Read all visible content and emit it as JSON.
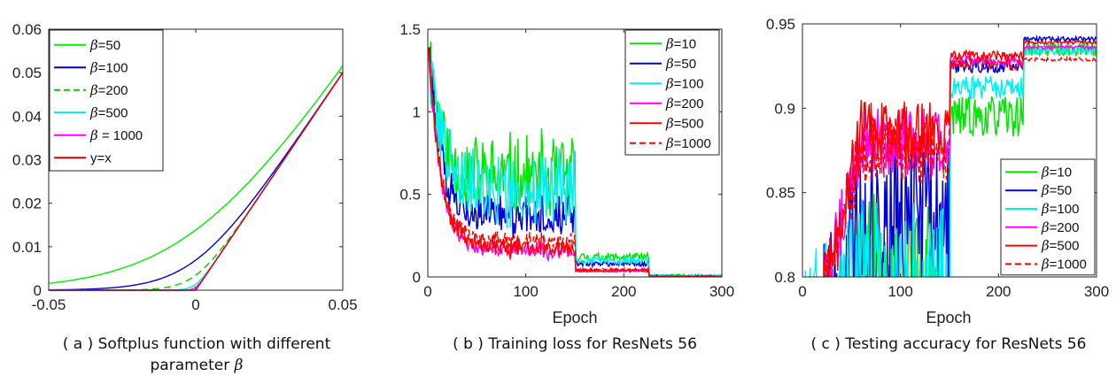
{
  "chart_data": [
    {
      "type": "line",
      "caption_line1": "( a ) Softplus function with different",
      "caption_line2": "parameter",
      "caption_symbol": "β",
      "xlim": [
        -0.05,
        0.05
      ],
      "ylim": [
        0,
        0.06
      ],
      "xticks": [
        "-0.05",
        "0",
        "0.05"
      ],
      "yticks": [
        "0",
        "0.01",
        "0.02",
        "0.03",
        "0.04",
        "0.05",
        "0.06"
      ],
      "legend_position": "top-left",
      "series": [
        {
          "label": "=50",
          "beta": 50,
          "color": "#00ee00",
          "dash": false
        },
        {
          "label": "=100",
          "beta": 100,
          "color": "#0000cc",
          "dash": false
        },
        {
          "label": "=200",
          "beta": 200,
          "color": "#00cc00",
          "dash": true
        },
        {
          "label": "=500",
          "beta": 500,
          "color": "#00e5e5",
          "dash": false
        },
        {
          "label": " = 1000",
          "beta": 1000,
          "color": "#ff00ff",
          "dash": false
        },
        {
          "label": "y=x",
          "beta": null,
          "color": "#dd0000",
          "dash": false
        }
      ]
    },
    {
      "type": "line",
      "caption": "( b ) Training loss for ResNets 56",
      "xlabel": "Epoch",
      "xlim": [
        0,
        300
      ],
      "ylim": [
        0,
        1.5
      ],
      "xticks": [
        "0",
        "100",
        "200",
        "300"
      ],
      "yticks": [
        "0",
        "0.5",
        "1",
        "1.5"
      ],
      "legend_position": "top-right",
      "series": [
        {
          "label": "=10",
          "color": "#00e600",
          "dash": false,
          "stage_means": [
            0.6,
            0.12,
            0.008
          ],
          "noise": [
            0.26,
            0.025
          ]
        },
        {
          "label": "=50",
          "color": "#0000dd",
          "dash": false,
          "stage_means": [
            0.37,
            0.08,
            0.006
          ],
          "noise": [
            0.12,
            0.015
          ]
        },
        {
          "label": "=100",
          "color": "#00f0f0",
          "dash": false,
          "stage_means": [
            0.55,
            0.1,
            0.007
          ],
          "noise": [
            0.22,
            0.02
          ]
        },
        {
          "label": "=200",
          "color": "#ff00ff",
          "dash": false,
          "stage_means": [
            0.16,
            0.035,
            0.003
          ],
          "noise": [
            0.05,
            0.006
          ]
        },
        {
          "label": "=500",
          "color": "#ff0000",
          "dash": false,
          "stage_means": [
            0.18,
            0.04,
            0.003
          ],
          "noise": [
            0.06,
            0.007
          ]
        },
        {
          "label": "=1000",
          "color": "#ff0000",
          "dash": true,
          "stage_means": [
            0.21,
            0.045,
            0.004
          ],
          "noise": [
            0.06,
            0.008
          ]
        }
      ]
    },
    {
      "type": "line",
      "caption_prefix": "( c ) Testing accuracy for",
      "caption_suffix": "ResNets 56",
      "xlabel": "Epoch",
      "xlim": [
        0,
        300
      ],
      "ylim": [
        0.8,
        0.95
      ],
      "xticks": [
        "0",
        "100",
        "200",
        "300"
      ],
      "yticks": [
        "0.8",
        "0.85",
        "0.9",
        "0.95"
      ],
      "legend_position": "bottom-right",
      "series": [
        {
          "label": "=10",
          "color": "#00e600",
          "dash": false,
          "stage_means": [
            0.79,
            0.895,
            0.935
          ],
          "noise": [
            0.06,
            0.012
          ]
        },
        {
          "label": "=50",
          "color": "#0000dd",
          "dash": false,
          "stage_means": [
            0.83,
            0.925,
            0.941
          ],
          "noise": [
            0.05,
            0.004
          ]
        },
        {
          "label": "=100",
          "color": "#00f0f0",
          "dash": false,
          "stage_means": [
            0.78,
            0.912,
            0.934
          ],
          "noise": [
            0.07,
            0.007
          ]
        },
        {
          "label": "=200",
          "color": "#ff00ff",
          "dash": false,
          "stage_means": [
            0.88,
            0.928,
            0.936
          ],
          "noise": [
            0.02,
            0.003
          ]
        },
        {
          "label": "=500",
          "color": "#ff0000",
          "dash": false,
          "stage_means": [
            0.885,
            0.931,
            0.939
          ],
          "noise": [
            0.02,
            0.003
          ]
        },
        {
          "label": "=1000",
          "color": "#ff0000",
          "dash": true,
          "stage_means": [
            0.875,
            0.926,
            0.929
          ],
          "noise": [
            0.02,
            0.003
          ]
        }
      ]
    }
  ]
}
